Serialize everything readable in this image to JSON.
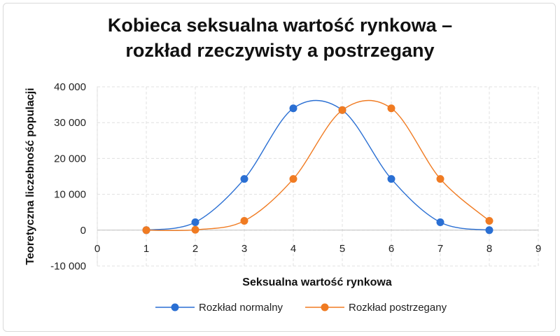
{
  "chart_data": {
    "type": "scatter",
    "title_lines": [
      "Kobieca seksualna wartość rynkowa –",
      "rozkład rzeczywisty a postrzegany"
    ],
    "xlabel": "Seksualna wartość rynkowa",
    "ylabel": "Teoretyczna liczebność populacji",
    "xlim": [
      0,
      9
    ],
    "ylim": [
      -10000,
      40000
    ],
    "x_ticks": [
      "0",
      "1",
      "2",
      "3",
      "4",
      "5",
      "6",
      "7",
      "8",
      "9"
    ],
    "y_ticks": [
      "-10 000",
      "0",
      "10 000",
      "20 000",
      "30 000",
      "40 000"
    ],
    "grid": true,
    "smooth_lines": true,
    "legend_position": "bottom",
    "series": [
      {
        "name": "Rozkład normalny",
        "color": "#2a6fd3",
        "points": [
          [
            1,
            0
          ],
          [
            2,
            2200
          ],
          [
            3,
            14300
          ],
          [
            4,
            34000
          ],
          [
            5,
            33500
          ],
          [
            6,
            14300
          ],
          [
            7,
            2200
          ],
          [
            8,
            0
          ]
        ]
      },
      {
        "name": "Rozkład postrzegany",
        "color": "#f07b22",
        "points": [
          [
            1,
            0
          ],
          [
            2,
            100
          ],
          [
            3,
            2600
          ],
          [
            4,
            14300
          ],
          [
            5,
            33500
          ],
          [
            6,
            34000
          ],
          [
            7,
            14300
          ],
          [
            8,
            2600
          ]
        ]
      }
    ]
  }
}
